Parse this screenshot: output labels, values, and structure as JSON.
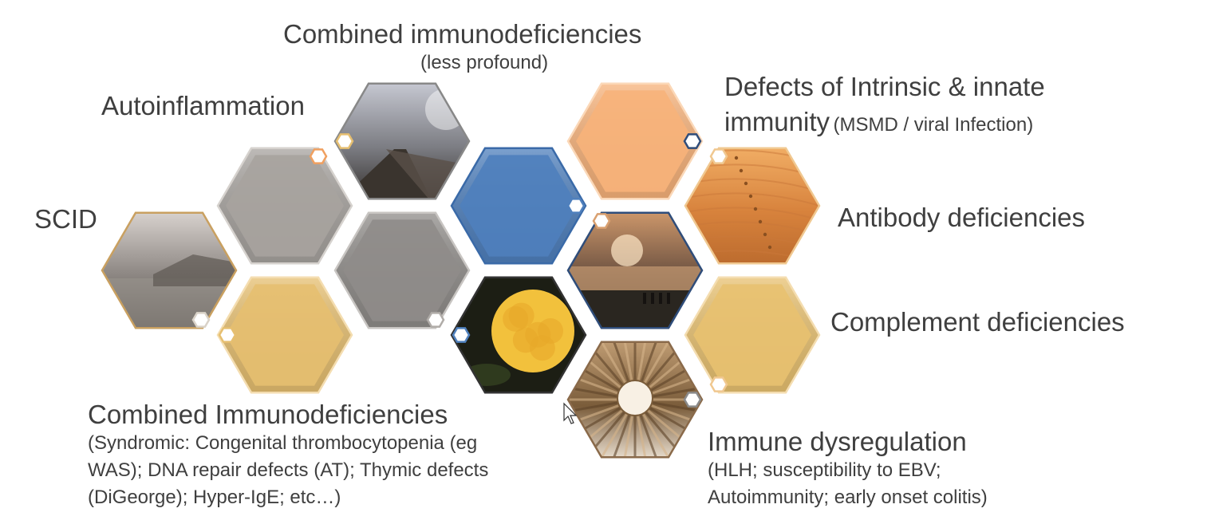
{
  "labels": {
    "combined_less": {
      "title": "Combined immunodeficiencies",
      "sub": "(less profound)"
    },
    "autoinflammation": "Autoinflammation",
    "defects_innate": {
      "line1": "Defects of Intrinsic & innate",
      "line2": "immunity",
      "line2_small": "(MSMD / viral Infection)"
    },
    "scid": "SCID",
    "antibody": "Antibody deficiencies",
    "complement": "Complement deficiencies",
    "combined_syndromic": {
      "title": "Combined Immunodeficiencies",
      "line1": "(Syndromic: Congenital thrombocytopenia (eg",
      "line2": "WAS); DNA repair defects (AT); Thymic defects",
      "line3": "(DiGeorge); Hyper-IgE; etc…)"
    },
    "dysregulation": {
      "title": "Immune dysregulation",
      "line1": "(HLH; susceptibility to EBV;",
      "line2": "Autoimmunity; early onset colitis)"
    }
  },
  "hexagons": [
    {
      "id": "scid",
      "fill": "photo-fog-lake",
      "colors": [
        "#e2dcd8",
        "#8a8480",
        "#4a4440"
      ],
      "border": "#c9a060"
    },
    {
      "id": "autoinflammation",
      "fill": "solid",
      "colors": [
        "#a7a39f"
      ],
      "border": "#d6d2ce"
    },
    {
      "id": "combined-syndromic",
      "fill": "solid",
      "colors": [
        "#e6bf70"
      ],
      "border": "#f4ddb0"
    },
    {
      "id": "combined-less",
      "fill": "photo-road",
      "colors": [
        "#d0d2dc",
        "#7b7c82",
        "#2b2622"
      ],
      "border": "#888"
    },
    {
      "id": "center-gray",
      "fill": "solid",
      "colors": [
        "#8f8c89"
      ],
      "border": "#c8c5c2"
    },
    {
      "id": "center-blue",
      "fill": "solid",
      "colors": [
        "#4f80bd"
      ],
      "border": "#3a6aa8"
    },
    {
      "id": "rose",
      "fill": "photo-rose",
      "colors": [
        "#f2c13c",
        "#b07a18",
        "#1c1e14"
      ],
      "border": "#333"
    },
    {
      "id": "defects-innate",
      "fill": "solid",
      "colors": [
        "#f7b27a"
      ],
      "border": "#fbd8b8"
    },
    {
      "id": "beach-sunset",
      "fill": "photo-beach",
      "colors": [
        "#d9a070",
        "#6a5040",
        "#2a2018"
      ],
      "border": "#2f4d7a"
    },
    {
      "id": "dysregulation",
      "fill": "photo-dome",
      "colors": [
        "#c8a47a",
        "#7a5c3a",
        "#f8f0e4"
      ],
      "border": "#8a6a4a"
    },
    {
      "id": "antibody",
      "fill": "photo-dunes",
      "colors": [
        "#f4b36a",
        "#d7823c",
        "#b8682c"
      ],
      "border": "#f0c890"
    },
    {
      "id": "complement",
      "fill": "solid",
      "colors": [
        "#e8c170"
      ],
      "border": "#f4ddb0"
    }
  ],
  "badges": [
    {
      "on": "scid",
      "fill": "#ffffff",
      "stroke": "#d9d2c8"
    },
    {
      "on": "autoinflammation",
      "fill": "#ffffff",
      "stroke": "#f0a060"
    },
    {
      "on": "combined-syndromic",
      "fill": "#ffffff",
      "stroke": "#e6bf70"
    },
    {
      "on": "combined-less",
      "fill": "#ffffff",
      "stroke": "#e6bf70"
    },
    {
      "on": "center-gray",
      "fill": "#ffffff",
      "stroke": "#b0aca8"
    },
    {
      "on": "center-blue",
      "fill": "#ffffff",
      "stroke": "#4f80bd"
    },
    {
      "on": "rose",
      "fill": "#ffffff",
      "stroke": "#4f80bd"
    },
    {
      "on": "defects-innate",
      "fill": "#ffffff",
      "stroke": "#2f4d7a"
    },
    {
      "on": "beach-sunset",
      "fill": "#ffffff",
      "stroke": "#d9a070"
    },
    {
      "on": "dysregulation",
      "fill": "#ffffff",
      "stroke": "#8a8a8a"
    },
    {
      "on": "antibody",
      "fill": "#ffffff",
      "stroke": "#f0c890"
    },
    {
      "on": "complement",
      "fill": "#ffffff",
      "stroke": "#f0c890"
    }
  ]
}
